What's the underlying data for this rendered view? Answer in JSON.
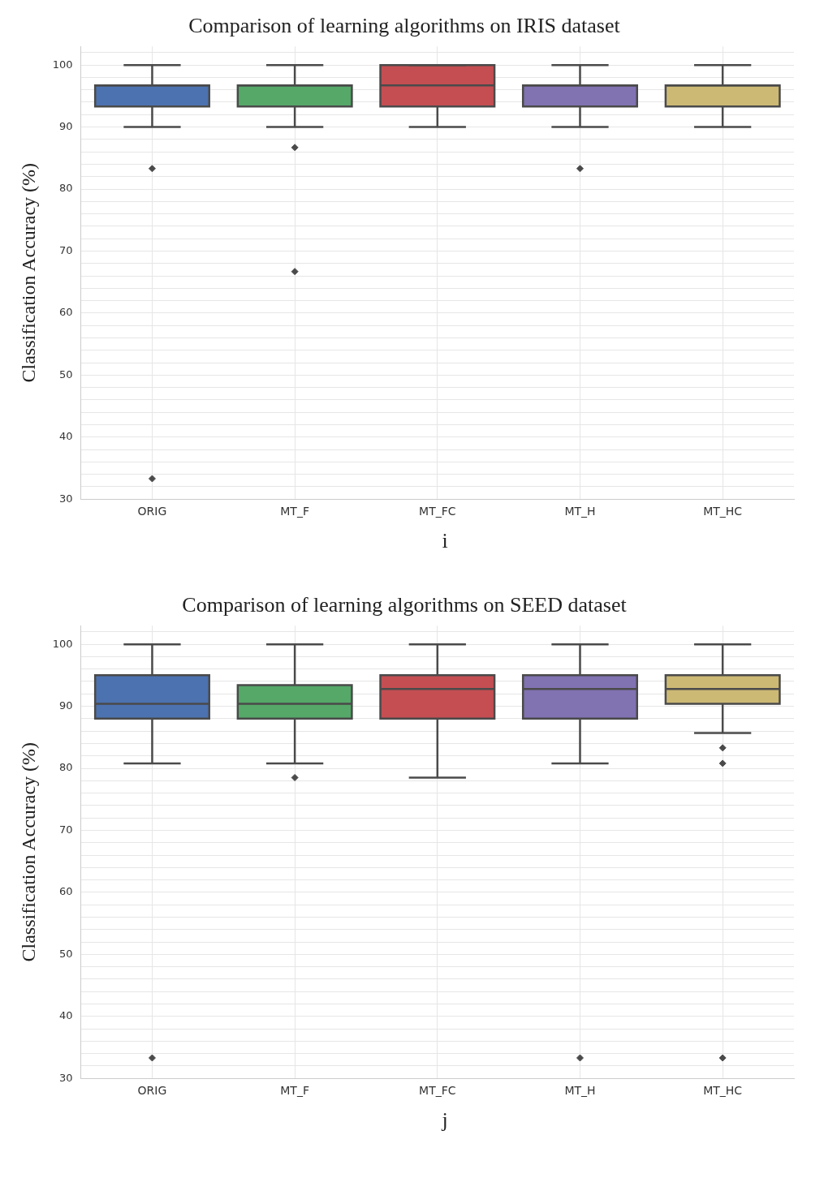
{
  "chart_data": [
    {
      "type": "box",
      "title": "Comparison of learning algorithms on IRIS dataset",
      "ylabel": "Classification Accuracy (%)",
      "categories": [
        "ORIG",
        "MT_F",
        "MT_FC",
        "MT_H",
        "MT_HC"
      ],
      "colors": [
        "#4c72b0",
        "#55a868",
        "#c44e52",
        "#8172b2",
        "#ccb974"
      ],
      "boxes": [
        {
          "low": 90,
          "q1": 93.3,
          "median": 96.7,
          "q3": 96.7,
          "high": 100,
          "outliers": [
            83.3,
            33.3
          ]
        },
        {
          "low": 90,
          "q1": 93.3,
          "median": 96.7,
          "q3": 96.7,
          "high": 100,
          "outliers": [
            86.7,
            66.7
          ]
        },
        {
          "low": 90,
          "q1": 93.3,
          "median": 96.7,
          "q3": 100,
          "high": 100
        },
        {
          "low": 90,
          "q1": 93.3,
          "median": 96.7,
          "q3": 96.7,
          "high": 100,
          "outliers": [
            83.3
          ]
        },
        {
          "low": 90,
          "q1": 93.3,
          "median": 96.7,
          "q3": 96.7,
          "high": 100
        }
      ],
      "ylim": [
        30,
        103
      ],
      "yticks": [
        30,
        {
          "value": 32,
          "label": null
        },
        {
          "value": 34,
          "label": null
        },
        {
          "value": 36,
          "label": null
        },
        {
          "value": 38,
          "label": null
        },
        40,
        {
          "value": 42,
          "label": null
        },
        {
          "value": 44,
          "label": null
        },
        {
          "value": 46,
          "label": null
        },
        {
          "value": 48,
          "label": null
        },
        50,
        {
          "value": 52,
          "label": null
        },
        {
          "value": 54,
          "label": null
        },
        {
          "value": 56,
          "label": null
        },
        {
          "value": 58,
          "label": null
        },
        60,
        {
          "value": 62,
          "label": null
        },
        {
          "value": 64,
          "label": null
        },
        {
          "value": 66,
          "label": null
        },
        {
          "value": 68,
          "label": null
        },
        70,
        {
          "value": 72,
          "label": null
        },
        {
          "value": 74,
          "label": null
        },
        {
          "value": 76,
          "label": null
        },
        {
          "value": 78,
          "label": null
        },
        80,
        {
          "value": 82,
          "label": null
        },
        {
          "value": 84,
          "label": null
        },
        {
          "value": 86,
          "label": null
        },
        {
          "value": 88,
          "label": null
        },
        90,
        {
          "value": 92,
          "label": null
        },
        {
          "value": 94,
          "label": null
        },
        {
          "value": 96,
          "label": null
        },
        {
          "value": 98,
          "label": null
        },
        100,
        {
          "value": 102,
          "label": null
        }
      ],
      "grid": true,
      "marker": "diamond",
      "annotations": [
        "i"
      ]
    },
    {
      "type": "box",
      "title": "Comparison of learning algorithms on SEED dataset",
      "ylabel": "Classification Accuracy (%)",
      "categories": [
        "ORIG",
        "MT_F",
        "MT_FC",
        "MT_H",
        "MT_HC"
      ],
      "colors": [
        "#4c72b0",
        "#55a868",
        "#c44e52",
        "#8172b2",
        "#ccb974"
      ],
      "boxes": [
        {
          "low": 80.8,
          "q1": 88,
          "median": 90.4,
          "q3": 95,
          "high": 100,
          "outliers": [
            33.3
          ]
        },
        {
          "low": 80.8,
          "q1": 88,
          "median": 90.4,
          "q3": 93.4,
          "high": 100,
          "outliers": [
            78.5
          ]
        },
        {
          "low": 78.5,
          "q1": 88,
          "median": 92.8,
          "q3": 95,
          "high": 100
        },
        {
          "low": 80.8,
          "q1": 88,
          "median": 92.8,
          "q3": 95,
          "high": 100,
          "outliers": [
            33.3
          ]
        },
        {
          "low": 85.7,
          "q1": 90.4,
          "median": 92.8,
          "q3": 95,
          "high": 100,
          "outliers": [
            83.3,
            80.8,
            33.3
          ]
        }
      ],
      "ylim": [
        30,
        103
      ],
      "yticks": [
        30,
        {
          "value": 32,
          "label": null
        },
        {
          "value": 34,
          "label": null
        },
        {
          "value": 36,
          "label": null
        },
        {
          "value": 38,
          "label": null
        },
        40,
        {
          "value": 42,
          "label": null
        },
        {
          "value": 44,
          "label": null
        },
        {
          "value": 46,
          "label": null
        },
        {
          "value": 48,
          "label": null
        },
        50,
        {
          "value": 52,
          "label": null
        },
        {
          "value": 54,
          "label": null
        },
        {
          "value": 56,
          "label": null
        },
        {
          "value": 58,
          "label": null
        },
        60,
        {
          "value": 62,
          "label": null
        },
        {
          "value": 64,
          "label": null
        },
        {
          "value": 66,
          "label": null
        },
        {
          "value": 68,
          "label": null
        },
        70,
        {
          "value": 72,
          "label": null
        },
        {
          "value": 74,
          "label": null
        },
        {
          "value": 76,
          "label": null
        },
        {
          "value": 78,
          "label": null
        },
        80,
        {
          "value": 82,
          "label": null
        },
        {
          "value": 84,
          "label": null
        },
        {
          "value": 86,
          "label": null
        },
        {
          "value": 88,
          "label": null
        },
        90,
        {
          "value": 92,
          "label": null
        },
        {
          "value": 94,
          "label": null
        },
        {
          "value": 96,
          "label": null
        },
        {
          "value": 98,
          "label": null
        },
        100,
        {
          "value": 102,
          "label": null
        }
      ],
      "grid": true,
      "marker": "diamond",
      "annotations": [
        "j"
      ]
    }
  ]
}
